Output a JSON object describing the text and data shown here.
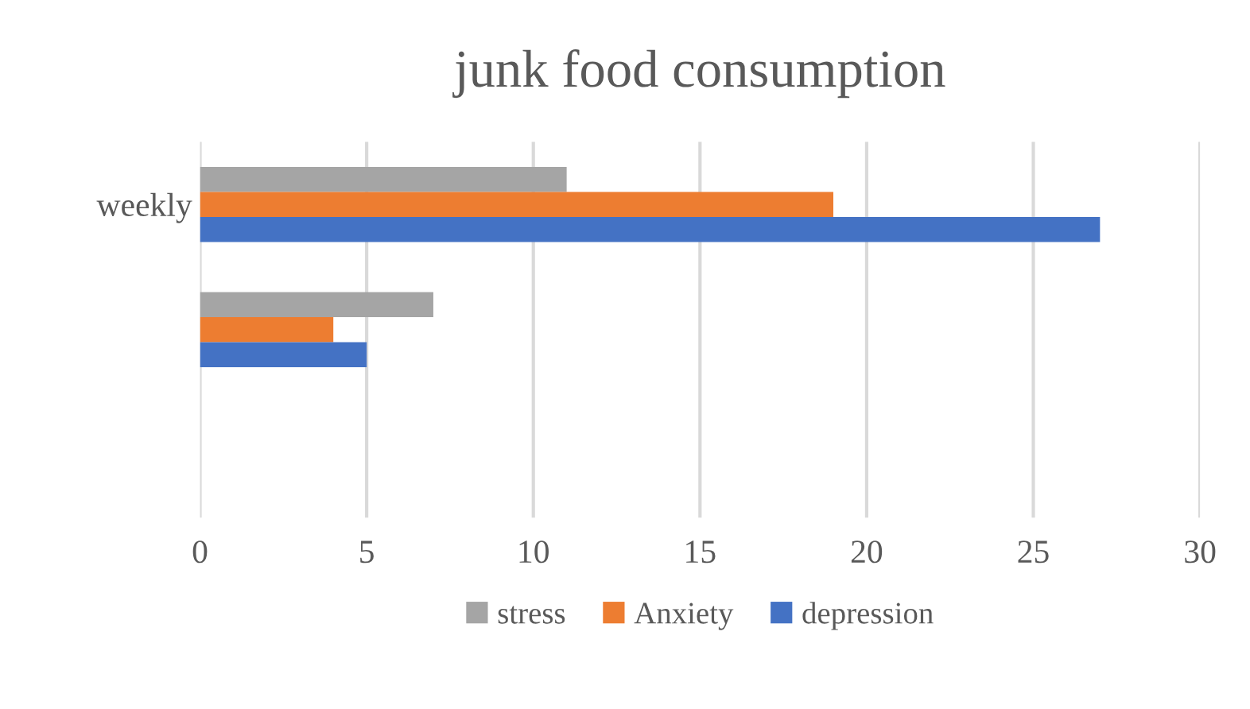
{
  "chart_data": {
    "type": "bar",
    "orientation": "horizontal",
    "title": "junk food consumption",
    "categories": [
      "weekly",
      null,
      null
    ],
    "series": [
      {
        "name": "stress",
        "color": "#a5a5a5",
        "values": [
          11,
          7,
          null
        ]
      },
      {
        "name": "Anxiety",
        "color": "#ed7d31",
        "values": [
          19,
          4,
          null
        ]
      },
      {
        "name": "depression",
        "color": "#4472c4",
        "values": [
          27,
          5,
          null
        ]
      }
    ],
    "xlim": [
      0,
      30
    ],
    "xticks": [
      0,
      5,
      10,
      15,
      20,
      25,
      30
    ],
    "grid": "x",
    "legend": "bottom"
  }
}
